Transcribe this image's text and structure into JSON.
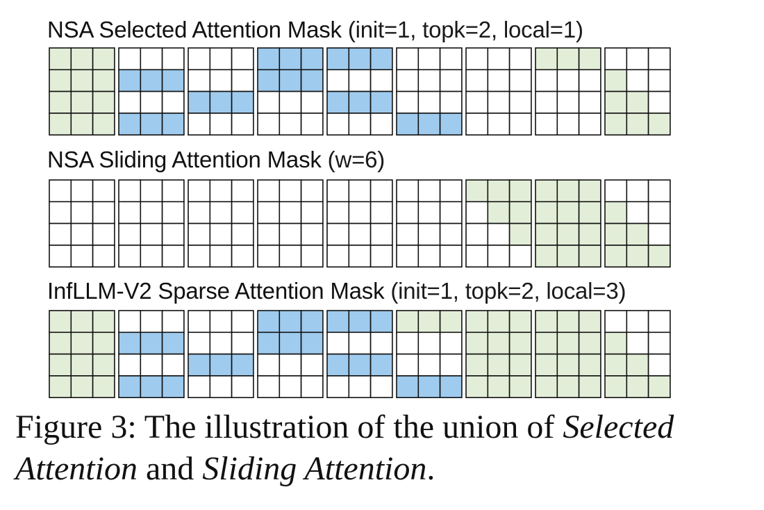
{
  "colors": {
    "selected": "#9fcbee",
    "sliding": "#e3eed8",
    "empty": "#ffffff",
    "grid_line": "#111111"
  },
  "panels": [
    {
      "name": "NSA Selected Attention Mask",
      "params": "(init=1, topk=2, local=1)",
      "blocks": [
        [
          "GGG",
          "GGG",
          "GGG",
          "GGG"
        ],
        [
          "...",
          "BBB",
          "...",
          "BBB"
        ],
        [
          "...",
          "...",
          "BBB",
          "..."
        ],
        [
          "BBB",
          "BBB",
          "...",
          "..."
        ],
        [
          "BBB",
          "...",
          "BBB",
          "..."
        ],
        [
          "...",
          "...",
          "...",
          "BBB"
        ],
        [
          "...",
          "...",
          "...",
          "..."
        ],
        [
          "GGG",
          "...",
          "...",
          "..."
        ],
        [
          "...",
          "G..",
          "GG.",
          "GGG"
        ]
      ]
    },
    {
      "name": "NSA Sliding Attention Mask",
      "params": "(w=6)",
      "blocks": [
        [
          "...",
          "...",
          "...",
          "..."
        ],
        [
          "...",
          "...",
          "...",
          "..."
        ],
        [
          "...",
          "...",
          "...",
          "..."
        ],
        [
          "...",
          "...",
          "...",
          "..."
        ],
        [
          "...",
          "...",
          "...",
          "..."
        ],
        [
          "...",
          "...",
          "...",
          "..."
        ],
        [
          "GGG",
          ".GG",
          "..G",
          "..."
        ],
        [
          "GGG",
          "GGG",
          "GGG",
          "GGG"
        ],
        [
          "...",
          "G..",
          "GG.",
          "GGG"
        ]
      ]
    },
    {
      "name": "InfLLM-V2 Sparse Attention Mask",
      "params": "(init=1, topk=2, local=3)",
      "blocks": [
        [
          "GGG",
          "GGG",
          "GGG",
          "GGG"
        ],
        [
          "...",
          "BBB",
          "...",
          "BBB"
        ],
        [
          "...",
          "...",
          "BBB",
          "..."
        ],
        [
          "BBB",
          "BBB",
          "...",
          "..."
        ],
        [
          "BBB",
          "...",
          "BBB",
          "..."
        ],
        [
          "GGG",
          "...",
          "...",
          "BBB"
        ],
        [
          "GGG",
          "GGG",
          "GGG",
          "GGG"
        ],
        [
          "GGG",
          "GGG",
          "GGG",
          "GGG"
        ],
        [
          "...",
          "G..",
          "GG.",
          "GGG"
        ]
      ]
    }
  ],
  "caption": {
    "label": "Figure 3:",
    "text_1": "The illustration of the union of",
    "em_1": "Selected Attention",
    "text_2": "and",
    "em_2": "Sliding Attention",
    "end": "."
  }
}
